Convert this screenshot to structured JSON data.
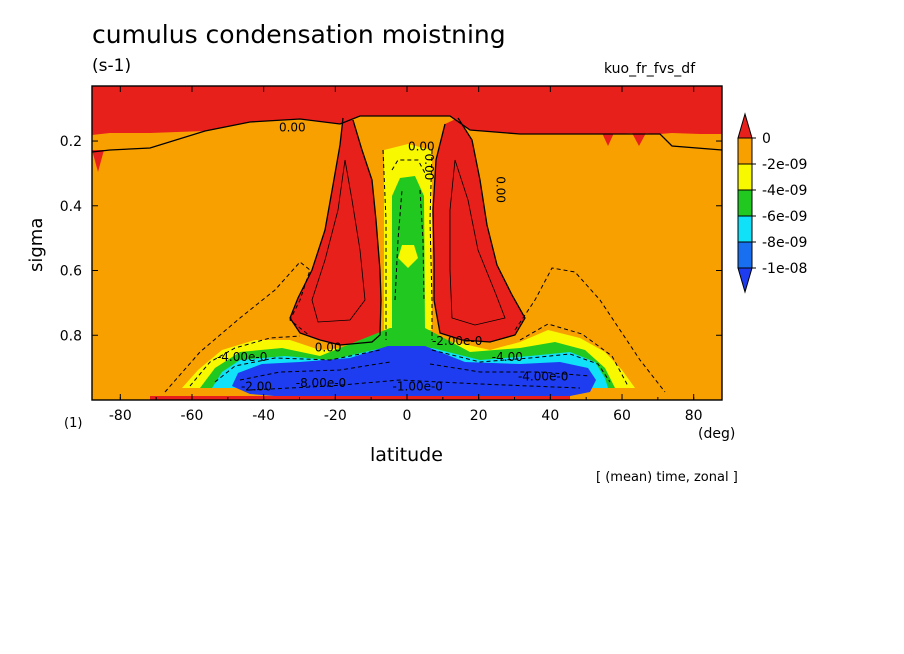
{
  "chart_data": {
    "type": "heatmap",
    "title": "cumulus condensation moistning",
    "units": "(s-1)",
    "variable": "kuo_fr_fvs_df",
    "xlabel": "latitude",
    "xunit": "(deg)",
    "ylabel": "sigma",
    "ylabel_marker": "(1)",
    "footnote": "[ (mean) time, zonal ]",
    "xlim": [
      -87.9,
      87.9
    ],
    "ylim": [
      0.03,
      1.0
    ],
    "y_inverted": true,
    "x_ticks": [
      "-80",
      "-60",
      "-40",
      "-20",
      "0",
      "20",
      "40",
      "60",
      "80"
    ],
    "x_tick_values": [
      -80,
      -60,
      -40,
      -20,
      0,
      20,
      40,
      60,
      80
    ],
    "y_ticks": [
      "0.2",
      "0.4",
      "0.6",
      "0.8"
    ],
    "y_tick_values": [
      0.2,
      0.4,
      0.6,
      0.8
    ],
    "colorbar": {
      "labels": [
        "0",
        "-2e-09",
        "-4e-09",
        "-6e-09",
        "-8e-09",
        "-1e-08"
      ],
      "levels": [
        0,
        -2e-09,
        -4e-09,
        -6e-09,
        -8e-09,
        -1e-08
      ],
      "colors": [
        "#e8201c",
        "#f8a000",
        "#f8f800",
        "#20c820",
        "#10e0f8",
        "#1870f0",
        "#1e3cf0"
      ]
    },
    "regions": [
      {
        "name": "upper-positive-band",
        "class": "> 0",
        "lat": [
          -88,
          88
        ],
        "sigma": [
          0.03,
          0.13
        ]
      },
      {
        "name": "southern-tower-positive",
        "class": "> 0",
        "lat": [
          -35,
          -5
        ],
        "sigma": [
          0.1,
          0.84
        ]
      },
      {
        "name": "northern-tower-positive",
        "class": "> 0",
        "lat": [
          5,
          35
        ],
        "sigma": [
          0.1,
          0.84
        ]
      },
      {
        "name": "equatorial-column",
        "class": "-6e-09 to -2e-09",
        "lat": [
          -10,
          10
        ],
        "sigma": [
          0.18,
          0.85
        ]
      },
      {
        "name": "lower-minimum",
        "class": "< -1e-08",
        "lat": [
          -45,
          45
        ],
        "sigma": [
          0.84,
          0.98
        ]
      }
    ],
    "contour_labels": [
      "0.00",
      "0.00",
      "0.00",
      "0.00",
      "0.00",
      "-2.00e-0",
      "-4.00e-0",
      "-4.00e-0",
      "-8.00e-0",
      "-1.00e-0",
      "-2.00",
      "-4.00"
    ]
  }
}
